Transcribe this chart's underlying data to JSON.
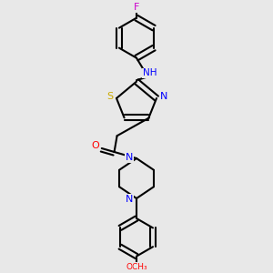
{
  "bg_color": "#e8e8e8",
  "line_color": "#000000",
  "bond_width": 1.5,
  "atom_colors": {
    "F": "#cc00cc",
    "N": "#0000ff",
    "S": "#ccaa00",
    "O": "#ff0000",
    "H": "#000000"
  },
  "figsize": [
    3.0,
    3.0
  ],
  "dpi": 100
}
